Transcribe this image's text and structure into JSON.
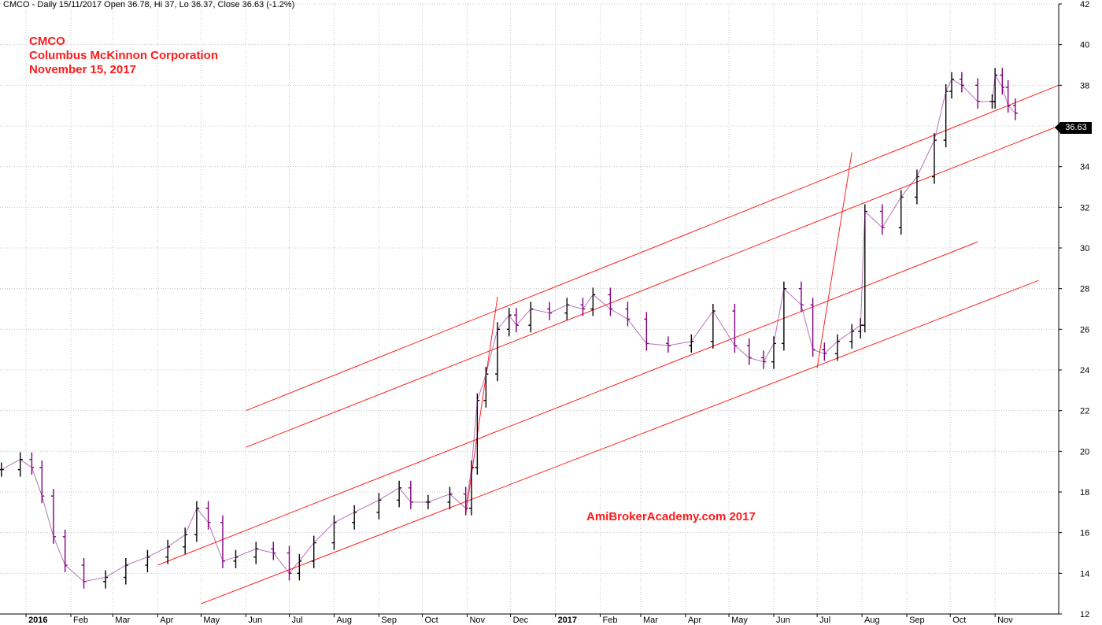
{
  "header": {
    "text": "CMCO - Daily 15/11/2017 Open 36.78, Hi 37, Lo 36.37, Close 36.63 (-1.2%)"
  },
  "annotation": {
    "ticker": "CMCO",
    "company": "Columbus McKinnon Corporation",
    "date": "November 15, 2017",
    "watermark": "AmiBrokerAcademy.com  2017"
  },
  "last_price_label": "36.63",
  "colors": {
    "up": "#000000",
    "down": "#800080",
    "channel": "#ff2020",
    "grid": "#c8c8c8",
    "text": "#ff1a1a"
  },
  "chart_data": {
    "type": "line",
    "title": "",
    "xlabel": "",
    "ylabel": "",
    "ylim": [
      12,
      42
    ],
    "grid": true,
    "y_ticks": [
      12,
      14,
      16,
      18,
      20,
      22,
      24,
      26,
      28,
      30,
      32,
      34,
      36,
      38,
      40,
      42
    ],
    "x_ticks": [
      {
        "date": "2016-01-01",
        "label": "2016",
        "bold": true
      },
      {
        "date": "2016-02-01",
        "label": "Feb"
      },
      {
        "date": "2016-03-01",
        "label": "Mar"
      },
      {
        "date": "2016-04-01",
        "label": "Apr"
      },
      {
        "date": "2016-05-01",
        "label": "May"
      },
      {
        "date": "2016-06-01",
        "label": "Jun"
      },
      {
        "date": "2016-07-01",
        "label": "Jul"
      },
      {
        "date": "2016-08-01",
        "label": "Aug"
      },
      {
        "date": "2016-09-01",
        "label": "Sep"
      },
      {
        "date": "2016-10-01",
        "label": "Oct"
      },
      {
        "date": "2016-11-01",
        "label": "Nov"
      },
      {
        "date": "2016-12-01",
        "label": "Dec"
      },
      {
        "date": "2017-01-01",
        "label": "2017",
        "bold": true
      },
      {
        "date": "2017-02-01",
        "label": "Feb"
      },
      {
        "date": "2017-03-01",
        "label": "Mar"
      },
      {
        "date": "2017-04-01",
        "label": "Apr"
      },
      {
        "date": "2017-05-01",
        "label": "May"
      },
      {
        "date": "2017-06-01",
        "label": "Jun"
      },
      {
        "date": "2017-07-01",
        "label": "Jul"
      },
      {
        "date": "2017-08-01",
        "label": "Aug"
      },
      {
        "date": "2017-09-01",
        "label": "Sep"
      },
      {
        "date": "2017-10-01",
        "label": "Oct"
      },
      {
        "date": "2017-11-01",
        "label": "Nov"
      }
    ],
    "x_range": [
      "2015-12-14",
      "2017-12-15"
    ],
    "series": [
      {
        "name": "Close",
        "x": [
          "2015-12-15",
          "2015-12-28",
          "2016-01-05",
          "2016-01-12",
          "2016-01-20",
          "2016-01-28",
          "2016-02-10",
          "2016-02-25",
          "2016-03-10",
          "2016-03-25",
          "2016-04-08",
          "2016-04-20",
          "2016-04-28",
          "2016-05-06",
          "2016-05-16",
          "2016-05-25",
          "2016-06-08",
          "2016-06-20",
          "2016-07-01",
          "2016-07-08",
          "2016-07-18",
          "2016-08-01",
          "2016-08-15",
          "2016-09-01",
          "2016-09-15",
          "2016-09-23",
          "2016-10-05",
          "2016-10-20",
          "2016-10-31",
          "2016-11-04",
          "2016-11-08",
          "2016-11-14",
          "2016-11-22",
          "2016-11-30",
          "2016-12-05",
          "2016-12-15",
          "2016-12-28",
          "2017-01-09",
          "2017-01-20",
          "2017-01-27",
          "2017-02-08",
          "2017-02-20",
          "2017-03-05",
          "2017-03-20",
          "2017-04-05",
          "2017-04-20",
          "2017-05-05",
          "2017-05-15",
          "2017-05-25",
          "2017-06-01",
          "2017-06-08",
          "2017-06-20",
          "2017-06-28",
          "2017-07-06",
          "2017-07-15",
          "2017-07-25",
          "2017-07-31",
          "2017-08-03",
          "2017-08-15",
          "2017-08-28",
          "2017-09-08",
          "2017-09-20",
          "2017-09-28",
          "2017-10-02",
          "2017-10-09",
          "2017-10-20",
          "2017-10-30",
          "2017-11-01",
          "2017-11-06",
          "2017-11-10",
          "2017-11-15"
        ],
        "values": [
          19.1,
          19.6,
          19.2,
          17.8,
          15.8,
          14.4,
          13.6,
          13.8,
          14.4,
          14.8,
          15.3,
          15.9,
          17.2,
          16.5,
          14.6,
          14.8,
          15.2,
          15.0,
          14.0,
          14.6,
          15.5,
          16.5,
          17.0,
          17.6,
          18.2,
          17.5,
          17.5,
          17.9,
          17.2,
          19.2,
          22.5,
          23.8,
          26.0,
          26.7,
          26.2,
          27.0,
          26.8,
          27.2,
          27.0,
          27.7,
          27.0,
          26.5,
          25.3,
          25.2,
          25.4,
          26.9,
          25.2,
          24.6,
          24.4,
          25.3,
          28.0,
          27.2,
          25.0,
          24.8,
          25.4,
          25.9,
          26.2,
          31.8,
          31.0,
          32.5,
          33.5,
          35.3,
          37.7,
          38.3,
          38.0,
          37.2,
          37.2,
          38.5,
          37.9,
          37.0,
          36.63
        ]
      }
    ],
    "channel_lines": [
      {
        "from": [
          "2016-06-01",
          22.0
        ],
        "to": [
          "2017-12-15",
          38.0
        ]
      },
      {
        "from": [
          "2016-06-01",
          20.2
        ],
        "to": [
          "2017-12-15",
          36.0
        ]
      },
      {
        "from": [
          "2016-04-01",
          14.4
        ],
        "to": [
          "2017-10-20",
          30.3
        ]
      },
      {
        "from": [
          "2016-05-01",
          12.5
        ],
        "to": [
          "2017-12-01",
          28.4
        ]
      },
      {
        "from": [
          "2016-10-31",
          16.9
        ],
        "to": [
          "2016-11-22",
          27.6
        ]
      },
      {
        "from": [
          "2017-07-01",
          24.1
        ],
        "to": [
          "2017-07-25",
          34.7
        ]
      }
    ]
  }
}
